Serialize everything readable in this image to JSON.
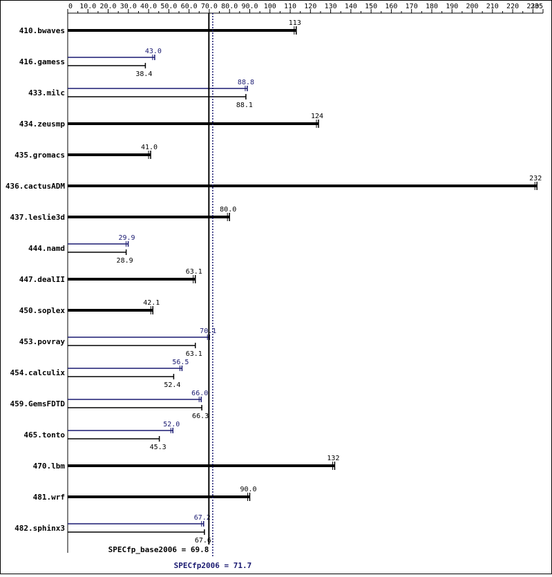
{
  "chart_data": {
    "type": "bar",
    "orientation": "horizontal",
    "xlim": [
      0,
      235
    ],
    "x_ticks": [
      0,
      10.0,
      20.0,
      30.0,
      40.0,
      50.0,
      60.0,
      70.0,
      80.0,
      90.0,
      100,
      110,
      120,
      130,
      140,
      150,
      160,
      170,
      180,
      190,
      200,
      210,
      220,
      230,
      235
    ],
    "x_tick_labels": [
      "0",
      "10.0",
      "20.0",
      "30.0",
      "40.0",
      "50.0",
      "60.0",
      "70.0",
      "80.0",
      "90.0",
      "100",
      "110",
      "120",
      "130",
      "140",
      "150",
      "160",
      "170",
      "180",
      "190",
      "200",
      "210",
      "220",
      "230",
      "235"
    ],
    "grid": false,
    "legend": "none",
    "colors": {
      "base": "#000000",
      "peak": "#191970"
    },
    "categories": [
      "410.bwaves",
      "416.gamess",
      "433.milc",
      "434.zeusmp",
      "435.gromacs",
      "436.cactusADM",
      "437.leslie3d",
      "444.namd",
      "447.dealII",
      "450.soplex",
      "453.povray",
      "454.calculix",
      "459.GemsFDTD",
      "465.tonto",
      "470.lbm",
      "481.wrf",
      "482.sphinx3"
    ],
    "base": {
      "values": [
        113,
        38.4,
        88.1,
        124,
        41.0,
        232,
        80.0,
        28.9,
        63.1,
        42.1,
        63.1,
        52.4,
        66.3,
        45.3,
        132,
        90.0,
        67.6
      ],
      "labels": [
        "113",
        "38.4",
        "88.1",
        "124",
        "41.0",
        "232",
        "80.0",
        "28.9",
        "63.1",
        "42.1",
        "63.1",
        "52.4",
        "66.3",
        "45.3",
        "132",
        "90.0",
        "67.6"
      ]
    },
    "peak": {
      "values": [
        null,
        43.0,
        88.8,
        null,
        null,
        null,
        null,
        29.9,
        null,
        null,
        70.1,
        56.5,
        66.0,
        52.0,
        null,
        null,
        67.2
      ],
      "labels": [
        null,
        "43.0",
        "88.8",
        null,
        null,
        null,
        null,
        "29.9",
        null,
        null,
        "70.1",
        "56.5",
        "66.0",
        "52.0",
        null,
        null,
        "67.2"
      ]
    },
    "summary": {
      "base": {
        "label": "SPECfp_base2006 = 69.8",
        "value": 69.8
      },
      "peak": {
        "label": "SPECfp2006 = 71.7",
        "value": 71.7
      }
    }
  }
}
